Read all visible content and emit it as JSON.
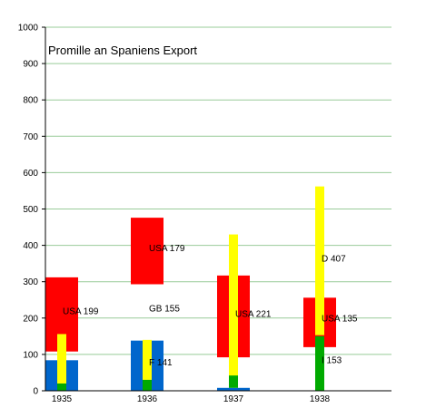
{
  "chart_data": {
    "type": "bar",
    "title": "Promille an Spaniens Export",
    "xlabel": "",
    "ylabel": "",
    "ylim": [
      0,
      1000
    ],
    "yticks": [
      0,
      100,
      200,
      300,
      400,
      500,
      600,
      700,
      800,
      900,
      1000
    ],
    "grid": true,
    "categories": [
      "1935",
      "1936",
      "1937",
      "1938"
    ],
    "floating_bars": [
      {
        "category": "1935",
        "color": "#ff0000",
        "low": 108,
        "high": 312
      },
      {
        "category": "1935",
        "color": "#0066cc",
        "low": 0,
        "high": 84
      },
      {
        "category": "1935",
        "color": "#ffff00",
        "low": 20,
        "high": 156
      },
      {
        "category": "1935",
        "color": "#00aa00",
        "low": 0,
        "high": 20
      },
      {
        "category": "1936",
        "color": "#ff0000",
        "low": 293,
        "high": 476
      },
      {
        "category": "1936",
        "color": "#0066cc",
        "low": 0,
        "high": 138
      },
      {
        "category": "1936",
        "color": "#ffff00",
        "low": 30,
        "high": 140
      },
      {
        "category": "1936",
        "color": "#00aa00",
        "low": 0,
        "high": 30
      },
      {
        "category": "1937",
        "color": "#ff0000",
        "low": 92,
        "high": 317
      },
      {
        "category": "1937",
        "color": "#0066cc",
        "low": 0,
        "high": 8
      },
      {
        "category": "1937",
        "color": "#ffff00",
        "low": 40,
        "high": 430
      },
      {
        "category": "1937",
        "color": "#00aa00",
        "low": 8,
        "high": 42
      },
      {
        "category": "1938",
        "color": "#ff0000",
        "low": 120,
        "high": 256
      },
      {
        "category": "1938",
        "color": "#ffff00",
        "low": 153,
        "high": 562
      },
      {
        "category": "1938",
        "color": "#00aa00",
        "low": 0,
        "high": 150
      }
    ],
    "annotations": [
      {
        "category": "1935",
        "text": "USA 199",
        "y": 220
      },
      {
        "category": "1936",
        "text": "USA 179",
        "y": 393
      },
      {
        "category": "1936",
        "text": "GB 155",
        "y": 227
      },
      {
        "category": "1936",
        "text": "F 141",
        "y": 79
      },
      {
        "category": "1937",
        "text": "USA 221",
        "y": 212
      },
      {
        "category": "1938",
        "text": "D 407",
        "y": 364
      },
      {
        "category": "1938",
        "text": "USA 135",
        "y": 199
      },
      {
        "category": "1938",
        "text": "I 153",
        "y": 85
      }
    ]
  }
}
